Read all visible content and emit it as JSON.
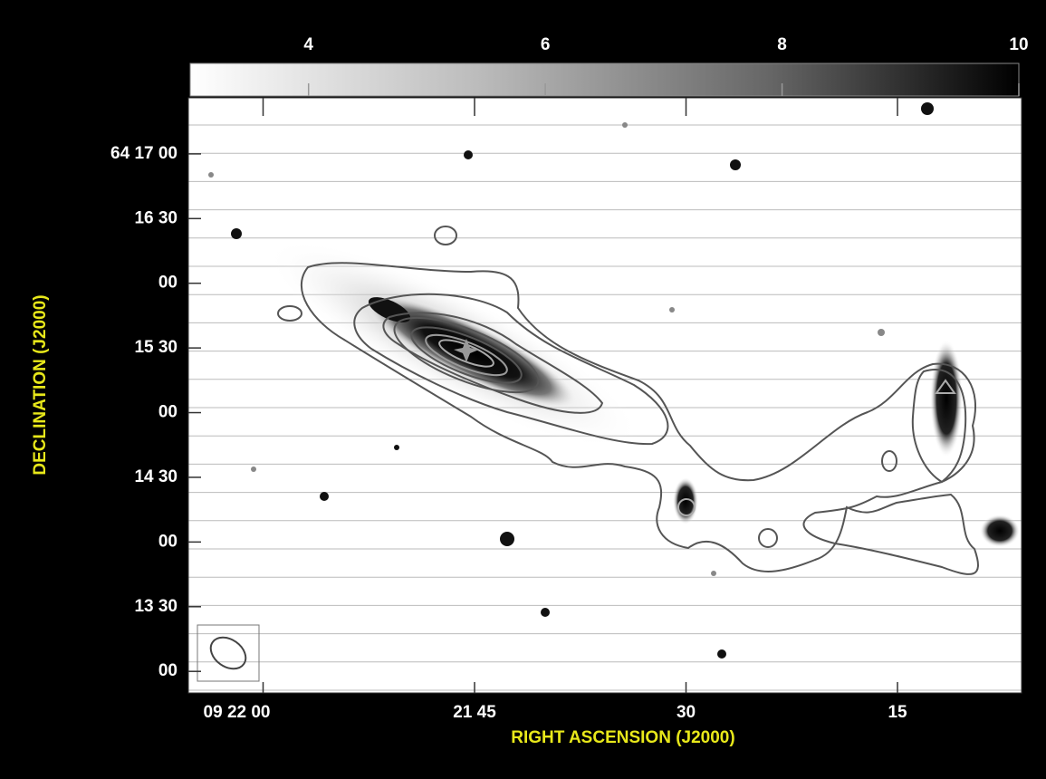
{
  "chart_data": {
    "type": "image",
    "xlabel": "RIGHT ASCENSION (J2000)",
    "ylabel": "DECLINATION (J2000)",
    "xlim": [
      65.3,
      6.2
    ],
    "xticks": [
      {
        "value": 60,
        "label": "09 22 00"
      },
      {
        "value": 45,
        "label": "21 45"
      },
      {
        "value": 30,
        "label": "30"
      },
      {
        "value": 15,
        "label": "15"
      }
    ],
    "ylim": [
      770,
      1046
    ],
    "yticks": [
      {
        "value": 1020,
        "label": "64 17 00"
      },
      {
        "value": 990,
        "label": "16 30"
      },
      {
        "value": 960,
        "label": "00"
      },
      {
        "value": 930,
        "label": "15 30"
      },
      {
        "value": 900,
        "label": "00"
      },
      {
        "value": 870,
        "label": "14 30"
      },
      {
        "value": 840,
        "label": "00"
      },
      {
        "value": 810,
        "label": "13 30"
      },
      {
        "value": 780,
        "label": "00"
      }
    ],
    "clim": [
      3,
      10
    ],
    "cticks": [
      4,
      6,
      8,
      10
    ]
  }
}
